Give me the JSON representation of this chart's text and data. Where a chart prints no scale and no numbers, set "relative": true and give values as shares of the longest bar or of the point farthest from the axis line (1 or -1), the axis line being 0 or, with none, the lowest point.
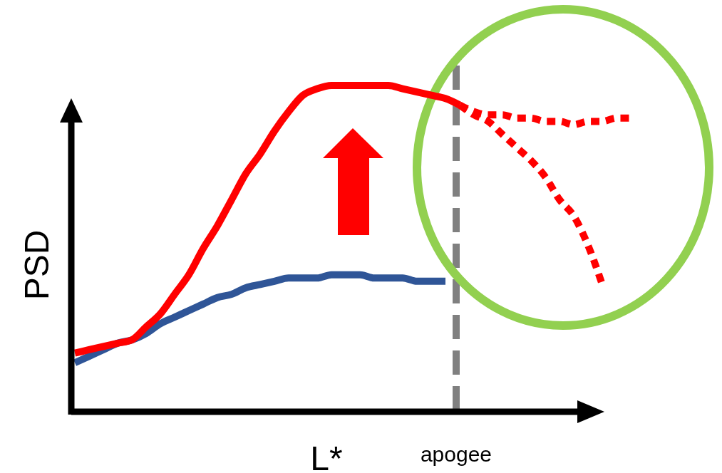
{
  "chart_data": {
    "type": "line",
    "relative": true,
    "xlabel": "L*",
    "ylabel": "PSD",
    "categories": [
      null,
      null,
      null,
      null,
      null,
      null,
      null,
      null,
      null,
      null,
      null,
      null,
      null,
      null,
      null,
      null,
      null,
      null,
      null,
      null,
      null,
      null,
      null,
      null,
      null,
      null,
      null,
      null,
      null,
      null,
      null,
      null,
      null,
      null,
      null,
      null,
      null,
      null,
      null,
      null
    ],
    "series": [
      {
        "color": "#2f5597",
        "line_style": "solid",
        "values": [
          0.15,
          0.17,
          0.19,
          0.21,
          0.22,
          0.24,
          0.27,
          0.29,
          0.31,
          0.33,
          0.35,
          0.36,
          0.38,
          0.39,
          0.4,
          0.41,
          0.41,
          0.41,
          0.42,
          0.42,
          0.42,
          0.41,
          0.41,
          0.41,
          0.4,
          0.4,
          0.4,
          null,
          null,
          null,
          null,
          null,
          null,
          null,
          null,
          null,
          null,
          null,
          null,
          null
        ]
      },
      {
        "color": "#ff0000",
        "line_style": "solid",
        "values": [
          0.18,
          0.19,
          0.2,
          0.21,
          0.22,
          0.26,
          0.3,
          0.36,
          0.42,
          0.5,
          0.57,
          0.65,
          0.73,
          0.79,
          0.86,
          0.92,
          0.97,
          0.99,
          1.0,
          1.0,
          1.0,
          1.0,
          1.0,
          0.99,
          0.98,
          0.97,
          0.96,
          0.94,
          null,
          null,
          null,
          null,
          null,
          null,
          null,
          null,
          null,
          null,
          null,
          null
        ]
      },
      {
        "color": "#ff0000",
        "line_style": "dotted",
        "values": [
          null,
          null,
          null,
          null,
          null,
          null,
          null,
          null,
          null,
          null,
          null,
          null,
          null,
          null,
          null,
          null,
          null,
          null,
          null,
          null,
          null,
          null,
          null,
          null,
          null,
          null,
          null,
          0.94,
          0.92,
          0.91,
          0.91,
          0.9,
          0.9,
          0.89,
          0.89,
          0.88,
          0.89,
          0.89,
          0.9,
          0.9
        ]
      },
      {
        "color": "#ff0000",
        "line_style": "dotted",
        "values": [
          null,
          null,
          null,
          null,
          null,
          null,
          null,
          null,
          null,
          null,
          null,
          null,
          null,
          null,
          null,
          null,
          null,
          null,
          null,
          null,
          null,
          null,
          null,
          null,
          null,
          null,
          null,
          0.94,
          0.91,
          0.89,
          0.85,
          0.81,
          0.77,
          0.72,
          0.65,
          0.6,
          0.51,
          0.39,
          null,
          null
        ]
      }
    ],
    "annotations": [
      "apogee"
    ]
  }
}
